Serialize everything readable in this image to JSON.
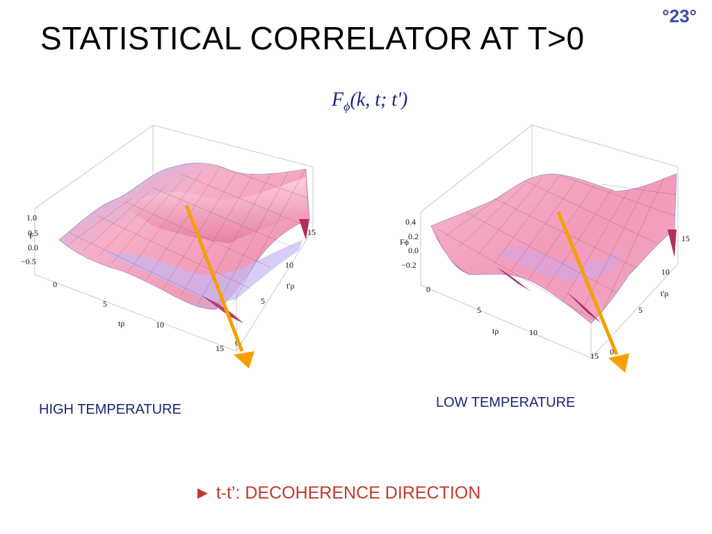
{
  "slide": {
    "number": "°23°",
    "title": "STATISTICAL CORRELATOR AT T>0",
    "formula": {
      "name": "F",
      "subscript": "ϕ",
      "args": "(k, t; t')"
    }
  },
  "plots": {
    "left": {
      "caption": "HIGH TEMPERATURE",
      "z_label": "F",
      "z_ticks": [
        "1.0",
        "0.5",
        "0.0",
        "−0.5"
      ],
      "x_label": "tρ",
      "x_ticks": [
        "0",
        "5",
        "10",
        "15"
      ],
      "y_label": "t'ρ",
      "y_ticks": [
        "0",
        "5",
        "10",
        "15"
      ]
    },
    "right": {
      "caption": "LOW TEMPERATURE",
      "z_label": "Fϕ",
      "z_ticks": [
        "0.4",
        "0.2",
        "0.0",
        "−0.2"
      ],
      "x_label": "tρ",
      "x_ticks": [
        "0",
        "5",
        "10",
        "15"
      ],
      "y_label": "t'ρ",
      "y_ticks": [
        "0",
        "5",
        "10",
        "15"
      ]
    }
  },
  "footnote": "► t-t’: DECOHERENCE DIRECTION",
  "colors": {
    "surface_pink": "#f4a3bf",
    "surface_blue": "#a9a6f0",
    "arrow_orange": "#f5a000",
    "caption_blue": "#1a237e",
    "footnote_red": "#c0392b"
  }
}
